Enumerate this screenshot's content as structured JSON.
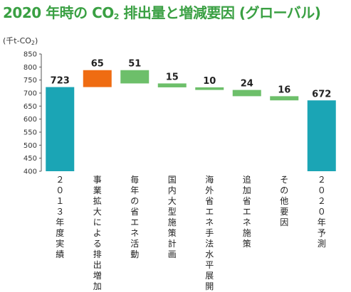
{
  "title": {
    "before": "2020 年時の CO",
    "sub": "2",
    "after": " 排出量と増減要因 (グローバル)"
  },
  "unit": {
    "before": "(千t-CO",
    "sub": "2",
    "after": ")"
  },
  "colors": {
    "total": "#1ba5b5",
    "increase": "#ef6c12",
    "decrease": "#6dbf6a",
    "title": "#3aa043"
  },
  "chart_data": {
    "type": "bar",
    "subtype": "waterfall",
    "title": "2020 年時の CO2 排出量と増減要因 (グローバル)",
    "ylabel": "(千t-CO2)",
    "ylim": [
      400,
      850
    ],
    "yticks": [
      400,
      450,
      500,
      550,
      600,
      650,
      700,
      750,
      800,
      850
    ],
    "categories": [
      "２０１３年度実績",
      "事業拡大による排出増加",
      "毎年の省エネ活動",
      "国内大型施策計画",
      "海外省エネ手法水平展開",
      "追加省エネ施策",
      "その他要因",
      "２０２０年予測"
    ],
    "bars": [
      {
        "kind": "total",
        "start": 400,
        "end": 723,
        "label": "723"
      },
      {
        "kind": "increase",
        "start": 723,
        "end": 788,
        "label": "65"
      },
      {
        "kind": "decrease",
        "start": 788,
        "end": 737,
        "label": "51"
      },
      {
        "kind": "decrease",
        "start": 737,
        "end": 722,
        "label": "15"
      },
      {
        "kind": "decrease",
        "start": 722,
        "end": 712,
        "label": "10"
      },
      {
        "kind": "decrease",
        "start": 712,
        "end": 688,
        "label": "24"
      },
      {
        "kind": "decrease",
        "start": 688,
        "end": 672,
        "label": "16"
      },
      {
        "kind": "total",
        "start": 400,
        "end": 672,
        "label": "672"
      }
    ],
    "grid": false,
    "legend": "none"
  }
}
